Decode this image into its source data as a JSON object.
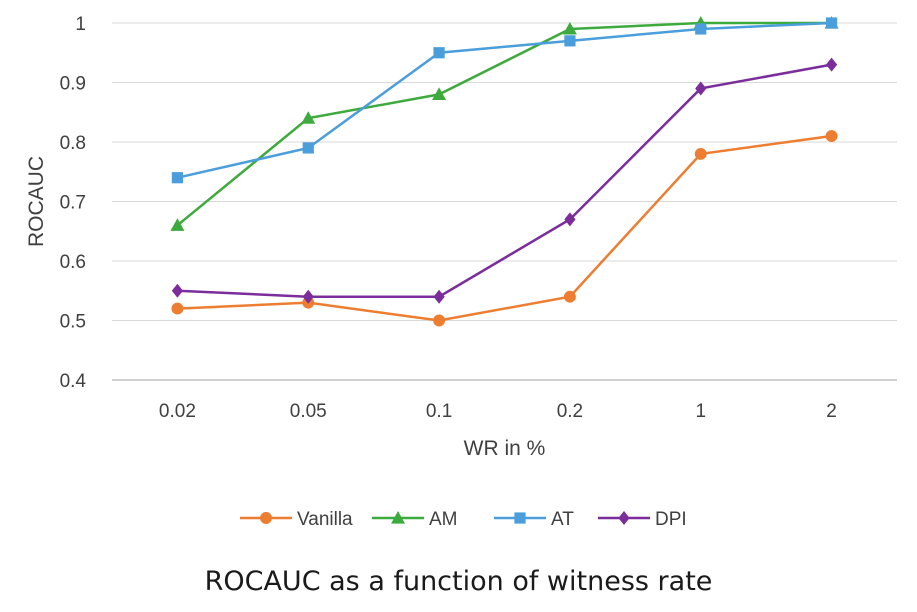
{
  "caption": "ROCAUC as a function of witness rate",
  "chart_data": {
    "type": "line",
    "title": "",
    "xlabel": "WR in %",
    "ylabel": "ROCAUC",
    "categories": [
      "0.02",
      "0.05",
      "0.1",
      "0.2",
      "1",
      "2"
    ],
    "ylim": [
      0.4,
      1.0
    ],
    "yticks": [
      "0.4",
      "0.5",
      "0.6",
      "0.7",
      "0.8",
      "0.9",
      "1"
    ],
    "grid": "horizontal",
    "legend_position": "bottom",
    "series": [
      {
        "name": "Vanilla",
        "color": "#ED7D31",
        "marker": "circle",
        "values": [
          0.52,
          0.53,
          0.5,
          0.54,
          0.78,
          0.81
        ]
      },
      {
        "name": "AM",
        "color": "#3DAA3D",
        "marker": "triangle",
        "values": [
          0.66,
          0.84,
          0.88,
          0.99,
          1.0,
          1.0
        ]
      },
      {
        "name": "AT",
        "color": "#4A9EDB",
        "marker": "square",
        "values": [
          0.74,
          0.79,
          0.95,
          0.97,
          0.99,
          1.0
        ]
      },
      {
        "name": "DPI",
        "color": "#7B2D9B",
        "marker": "diamond",
        "values": [
          0.55,
          0.54,
          0.54,
          0.67,
          0.89,
          0.93
        ]
      }
    ]
  }
}
